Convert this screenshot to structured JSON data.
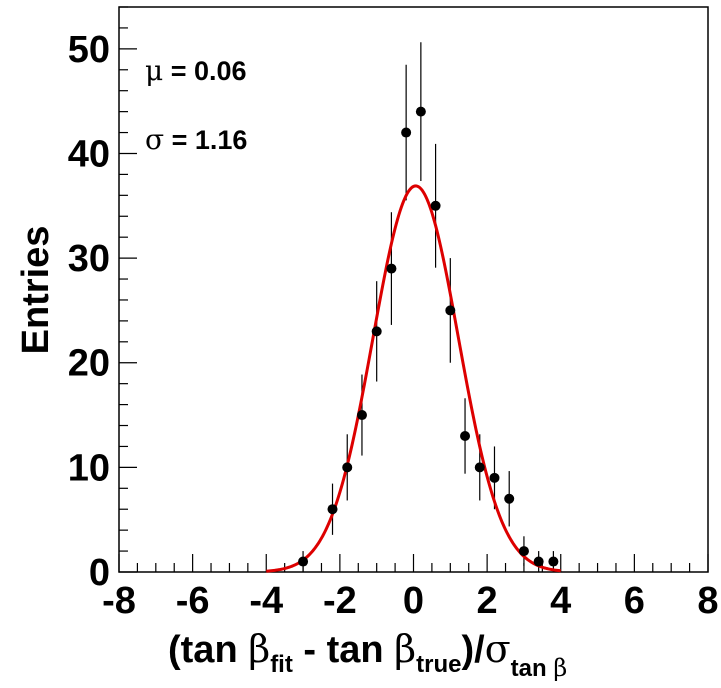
{
  "chart_data": {
    "type": "scatter",
    "xlabel": {
      "open": "(tan ",
      "beta1": "β",
      "sub_fit": "fit",
      "mid": " - tan ",
      "beta2": "β",
      "sub_true": "true",
      "close": ")/",
      "sigma": "σ",
      "sub_tan": "tan ",
      "sub_beta": "β"
    },
    "ylabel": "Entries",
    "xlim": [
      -8,
      8
    ],
    "ylim": [
      0,
      54
    ],
    "x_ticks": [
      -8,
      -6,
      -4,
      -2,
      0,
      2,
      4,
      6,
      8
    ],
    "x_tick_labels": [
      "-8",
      "-6",
      "-4",
      "-2",
      "0",
      "2",
      "4",
      "6",
      "8"
    ],
    "y_ticks": [
      0,
      10,
      20,
      30,
      40,
      50
    ],
    "y_tick_labels": [
      "0",
      "10",
      "20",
      "30",
      "40",
      "50"
    ],
    "annotations": {
      "mu_symbol": "μ",
      "mu_text": " = 0.06",
      "sigma_symbol": "σ",
      "sigma_text": " = 1.16"
    },
    "histogram_points": [
      {
        "x": -3.0,
        "y": 1
      },
      {
        "x": -2.2,
        "y": 6
      },
      {
        "x": -1.8,
        "y": 10
      },
      {
        "x": -1.4,
        "y": 15
      },
      {
        "x": -1.0,
        "y": 23
      },
      {
        "x": -0.6,
        "y": 29
      },
      {
        "x": -0.2,
        "y": 42
      },
      {
        "x": 0.2,
        "y": 44
      },
      {
        "x": 0.6,
        "y": 35
      },
      {
        "x": 1.0,
        "y": 25
      },
      {
        "x": 1.4,
        "y": 13
      },
      {
        "x": 1.8,
        "y": 10
      },
      {
        "x": 2.2,
        "y": 9
      },
      {
        "x": 2.6,
        "y": 7
      },
      {
        "x": 3.0,
        "y": 2
      },
      {
        "x": 3.4,
        "y": 1
      },
      {
        "x": 3.8,
        "y": 1
      }
    ],
    "fit": {
      "type": "gaussian",
      "mean": 0.06,
      "sigma": 1.16,
      "amplitude": 36.9,
      "range": [
        -4,
        4
      ],
      "color": "#dd0000"
    },
    "marker_color": "#000000"
  }
}
